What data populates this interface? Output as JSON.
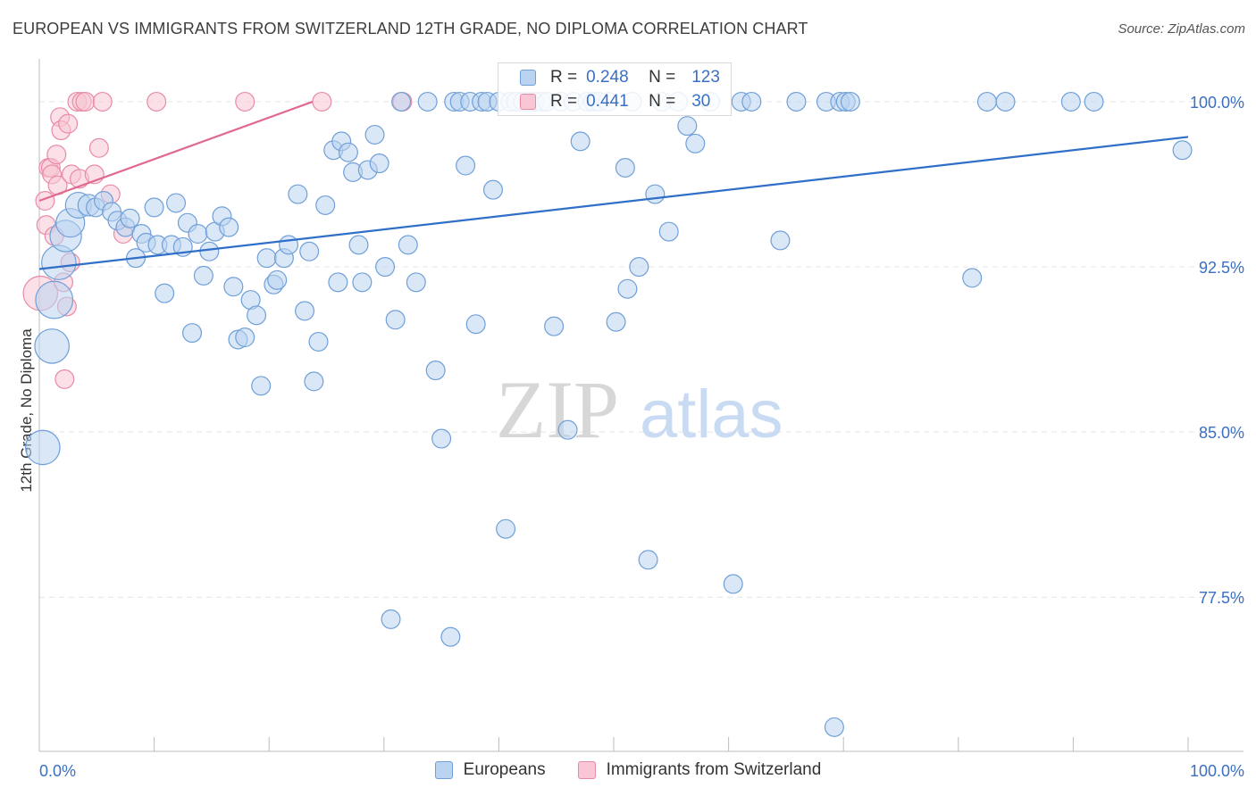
{
  "title": "EUROPEAN VS IMMIGRANTS FROM SWITZERLAND 12TH GRADE, NO DIPLOMA CORRELATION CHART",
  "source": "Source: ZipAtlas.com",
  "watermark": {
    "zip": "ZIP",
    "atlas": "atlas"
  },
  "legend": {
    "r_label": "R =",
    "n_label": "N =",
    "europeans": {
      "r": "0.248",
      "n": "123"
    },
    "swiss": {
      "r": "0.441",
      "n": "30"
    }
  },
  "chart_data": {
    "type": "scatter",
    "title": "EUROPEAN VS IMMIGRANTS FROM SWITZERLAND 12TH GRADE, NO DIPLOMA CORRELATION CHART",
    "xlabel": "",
    "ylabel": "12th Grade, No Diploma",
    "xlim": [
      0,
      100
    ],
    "ylim": [
      70.5,
      101.7
    ],
    "x_tick_labels": [
      "0.0%",
      "100.0%"
    ],
    "y_ticks": [
      {
        "value": 100.0,
        "label": "100.0%"
      },
      {
        "value": 92.5,
        "label": "92.5%"
      },
      {
        "value": 85.0,
        "label": "85.0%"
      },
      {
        "value": 77.5,
        "label": "77.5%"
      }
    ],
    "colors": {
      "europeans": "#6f9fd8",
      "europeans_fill": "#b9d3f1",
      "europeans_line": "#2f6fc8",
      "swiss": "#e88aa6",
      "swiss_fill": "#f8c6d4",
      "swiss_line": "#e06a91"
    },
    "series": [
      {
        "name": "Europeans",
        "trend": {
          "x": [
            0,
            100
          ],
          "y": [
            92.4,
            98.4
          ]
        },
        "points": [
          [
            0.3,
            84.3,
            2.4
          ],
          [
            1.1,
            88.9,
            2.4
          ],
          [
            1.3,
            91.0,
            2.6
          ],
          [
            1.7,
            92.7,
            2.4
          ],
          [
            2.3,
            93.9,
            2.2
          ],
          [
            2.7,
            94.5,
            2.0
          ],
          [
            3.4,
            95.3,
            1.8
          ],
          [
            4.3,
            95.3,
            1.5
          ],
          [
            4.9,
            95.2,
            1.3
          ],
          [
            5.6,
            95.5,
            1.3
          ],
          [
            6.3,
            95.0,
            1.3
          ],
          [
            6.8,
            94.6,
            1.3
          ],
          [
            7.5,
            94.3,
            1.3
          ],
          [
            7.9,
            94.7,
            1.3
          ],
          [
            8.4,
            92.9,
            1.3
          ],
          [
            8.9,
            94.0,
            1.3
          ],
          [
            9.3,
            93.6,
            1.3
          ],
          [
            10.0,
            95.2,
            1.3
          ],
          [
            10.3,
            93.5,
            1.3
          ],
          [
            10.9,
            91.3,
            1.3
          ],
          [
            11.5,
            93.5,
            1.3
          ],
          [
            11.9,
            95.4,
            1.3
          ],
          [
            12.5,
            93.4,
            1.3
          ],
          [
            12.9,
            94.5,
            1.3
          ],
          [
            13.3,
            89.5,
            1.3
          ],
          [
            13.8,
            94.0,
            1.3
          ],
          [
            14.3,
            92.1,
            1.3
          ],
          [
            14.8,
            93.2,
            1.3
          ],
          [
            15.3,
            94.1,
            1.3
          ],
          [
            15.9,
            94.8,
            1.3
          ],
          [
            16.5,
            94.3,
            1.3
          ],
          [
            16.9,
            91.6,
            1.3
          ],
          [
            17.3,
            89.2,
            1.3
          ],
          [
            17.9,
            89.3,
            1.3
          ],
          [
            18.4,
            91.0,
            1.3
          ],
          [
            18.9,
            90.3,
            1.3
          ],
          [
            19.3,
            87.1,
            1.3
          ],
          [
            19.8,
            92.9,
            1.3
          ],
          [
            20.4,
            91.7,
            1.3
          ],
          [
            20.7,
            91.9,
            1.3
          ],
          [
            21.3,
            92.9,
            1.3
          ],
          [
            21.7,
            93.5,
            1.3
          ],
          [
            22.5,
            95.8,
            1.3
          ],
          [
            23.1,
            90.5,
            1.3
          ],
          [
            23.5,
            93.2,
            1.3
          ],
          [
            23.9,
            87.3,
            1.3
          ],
          [
            24.3,
            89.1,
            1.3
          ],
          [
            24.9,
            95.3,
            1.3
          ],
          [
            25.6,
            97.8,
            1.3
          ],
          [
            26.0,
            91.8,
            1.3
          ],
          [
            26.3,
            98.2,
            1.3
          ],
          [
            26.9,
            97.7,
            1.3
          ],
          [
            27.3,
            96.8,
            1.3
          ],
          [
            27.8,
            93.5,
            1.3
          ],
          [
            28.1,
            91.8,
            1.3
          ],
          [
            28.6,
            96.9,
            1.3
          ],
          [
            29.2,
            98.5,
            1.3
          ],
          [
            29.6,
            97.2,
            1.3
          ],
          [
            30.1,
            92.5,
            1.3
          ],
          [
            31.0,
            90.1,
            1.3
          ],
          [
            31.5,
            100.0,
            1.3
          ],
          [
            32.1,
            93.5,
            1.3
          ],
          [
            32.8,
            91.8,
            1.3
          ],
          [
            33.8,
            100.0,
            1.3
          ],
          [
            34.5,
            87.8,
            1.3
          ],
          [
            35.0,
            84.7,
            1.3
          ],
          [
            36.1,
            100.0,
            1.3
          ],
          [
            36.6,
            100.0,
            1.3
          ],
          [
            37.1,
            97.1,
            1.3
          ],
          [
            37.5,
            100.0,
            1.3
          ],
          [
            38.0,
            89.9,
            1.3
          ],
          [
            38.5,
            100.0,
            1.3
          ],
          [
            39.0,
            100.0,
            1.3
          ],
          [
            39.5,
            96.0,
            1.3
          ],
          [
            40.0,
            100.0,
            1.3
          ],
          [
            40.6,
            80.6,
            1.3
          ],
          [
            41.0,
            100.0,
            1.3
          ],
          [
            41.5,
            100.0,
            1.3
          ],
          [
            42.1,
            100.0,
            1.3
          ],
          [
            42.6,
            100.0,
            1.3
          ],
          [
            43.1,
            100.0,
            1.3
          ],
          [
            43.7,
            100.0,
            1.3
          ],
          [
            44.2,
            100.0,
            1.3
          ],
          [
            44.8,
            89.8,
            1.3
          ],
          [
            45.4,
            100.0,
            1.3
          ],
          [
            46.0,
            85.1,
            1.3
          ],
          [
            46.5,
            100.0,
            1.3
          ],
          [
            47.1,
            98.2,
            1.3
          ],
          [
            47.7,
            100.0,
            1.3
          ],
          [
            48.2,
            100.0,
            1.3
          ],
          [
            48.7,
            100.0,
            1.3
          ],
          [
            49.5,
            100.0,
            1.3
          ],
          [
            50.2,
            90.0,
            1.3
          ],
          [
            51.0,
            97.0,
            1.3
          ],
          [
            51.2,
            91.5,
            1.3
          ],
          [
            51.6,
            100.0,
            1.3
          ],
          [
            52.2,
            92.5,
            1.3
          ],
          [
            53.0,
            79.2,
            1.3
          ],
          [
            53.6,
            95.8,
            1.3
          ],
          [
            54.2,
            100.0,
            1.3
          ],
          [
            54.8,
            94.1,
            1.3
          ],
          [
            55.6,
            100.0,
            1.3
          ],
          [
            56.4,
            98.9,
            1.3
          ],
          [
            57.1,
            98.1,
            1.3
          ],
          [
            58.4,
            100.0,
            1.3
          ],
          [
            60.4,
            78.1,
            1.3
          ],
          [
            61.1,
            100.0,
            1.3
          ],
          [
            62.0,
            100.0,
            1.3
          ],
          [
            64.5,
            93.7,
            1.3
          ],
          [
            65.9,
            100.0,
            1.3
          ],
          [
            68.5,
            100.0,
            1.3
          ],
          [
            69.2,
            71.6,
            1.3
          ],
          [
            69.7,
            100.0,
            1.3
          ],
          [
            70.2,
            100.0,
            1.3
          ],
          [
            70.6,
            100.0,
            1.3
          ],
          [
            81.2,
            92.0,
            1.3
          ],
          [
            82.5,
            100.0,
            1.3
          ],
          [
            84.1,
            100.0,
            1.3
          ],
          [
            89.8,
            100.0,
            1.3
          ],
          [
            91.8,
            100.0,
            1.3
          ],
          [
            99.5,
            97.8,
            1.3
          ],
          [
            30.6,
            76.5,
            1.3
          ],
          [
            35.8,
            75.7,
            1.3
          ]
        ]
      },
      {
        "name": "Immigrants from Switzerland",
        "trend": {
          "x": [
            0,
            23.8
          ],
          "y": [
            95.5,
            100.0
          ]
        },
        "points": [
          [
            0.1,
            91.3,
            2.4
          ],
          [
            0.5,
            95.5,
            1.3
          ],
          [
            0.6,
            94.4,
            1.3
          ],
          [
            0.8,
            97.0,
            1.3
          ],
          [
            1.0,
            97.0,
            1.3
          ],
          [
            1.1,
            96.7,
            1.3
          ],
          [
            1.3,
            93.9,
            1.3
          ],
          [
            1.6,
            96.2,
            1.3
          ],
          [
            1.8,
            99.3,
            1.3
          ],
          [
            1.9,
            98.7,
            1.3
          ],
          [
            2.1,
            91.8,
            1.3
          ],
          [
            2.2,
            87.4,
            1.3
          ],
          [
            2.4,
            90.7,
            1.3
          ],
          [
            2.5,
            99.0,
            1.3
          ],
          [
            2.7,
            92.7,
            1.3
          ],
          [
            2.8,
            96.7,
            1.3
          ],
          [
            3.3,
            100.0,
            1.3
          ],
          [
            3.5,
            96.5,
            1.3
          ],
          [
            3.7,
            100.0,
            1.3
          ],
          [
            4.0,
            100.0,
            1.3
          ],
          [
            4.8,
            96.7,
            1.3
          ],
          [
            5.2,
            97.9,
            1.3
          ],
          [
            5.5,
            100.0,
            1.3
          ],
          [
            6.2,
            95.8,
            1.3
          ],
          [
            7.3,
            94.0,
            1.3
          ],
          [
            1.5,
            97.6,
            1.3
          ],
          [
            10.2,
            100.0,
            1.3
          ],
          [
            17.9,
            100.0,
            1.3
          ],
          [
            24.6,
            100.0,
            1.3
          ],
          [
            31.6,
            100.0,
            1.3
          ]
        ]
      }
    ]
  }
}
